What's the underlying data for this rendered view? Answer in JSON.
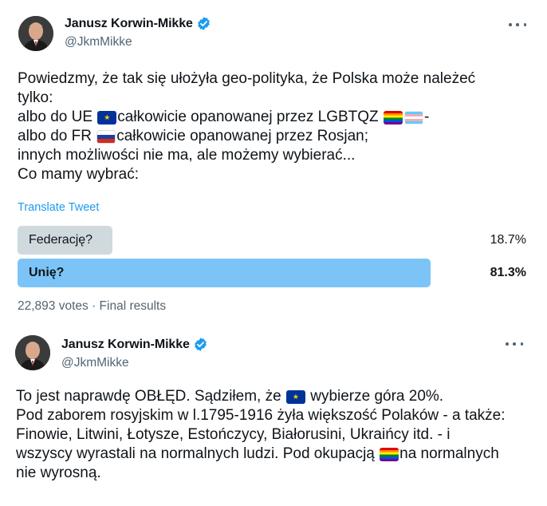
{
  "tweets": [
    {
      "author": "Janusz Korwin-Mikke",
      "handle": "@JkmMikke",
      "lines": [
        [
          "Powiedzmy, że tak się ułożyła geo-polityka, że Polska może należeć"
        ],
        [
          "tylko:"
        ],
        [
          "albo do UE ",
          "",
          "całkowicie opanowanej przez LGBTQZ ",
          "",
          "",
          "-"
        ],
        [
          "albo do FR ",
          "",
          "całkowicie opanowanej przez Rosjan;"
        ],
        [
          "innych możliwości nie ma, ale możemy wybierać..."
        ],
        [
          "Co mamy wybrać:"
        ]
      ],
      "translate_label": "Translate Tweet",
      "poll": {
        "options": [
          {
            "label": "Federację?",
            "percent_text": "18.7%",
            "percent": 18.7
          },
          {
            "label": "Unię?",
            "percent_text": "81.3%",
            "percent": 81.3
          }
        ],
        "votes": "22,893 votes",
        "status": "Final results"
      }
    },
    {
      "author": "Janusz Korwin-Mikke",
      "handle": "@JkmMikke",
      "lines": [
        [
          "To jest naprawdę OBŁĘD. Sądziłem, że ",
          "",
          " wybierze góra 20%."
        ],
        [
          "Pod zaborem rosyjskim w l.1795-1916 żyła większość Polaków - a także:"
        ],
        [
          "Finowie, Litwini, Łotysze, Estończycy, Białorusini, Ukraińcy itd. - i"
        ],
        [
          "wszyscy wyrastali na normalnych ludzi. Pod okupacją ",
          "",
          "na normalnych"
        ],
        [
          "nie wyrosną."
        ]
      ]
    }
  ],
  "icons": {
    "verified": "verified-badge-icon",
    "more": "more-options-icon",
    "flag_eu": "eu-flag-icon",
    "flag_ru": "russia-flag-icon",
    "flag_rainbow": "rainbow-flag-icon",
    "flag_trans": "transgender-flag-icon"
  },
  "colors": {
    "accent": "#1d9bf0",
    "poll_winner": "#7cc4f7",
    "poll_other": "#cfd9de",
    "muted": "#536471"
  }
}
